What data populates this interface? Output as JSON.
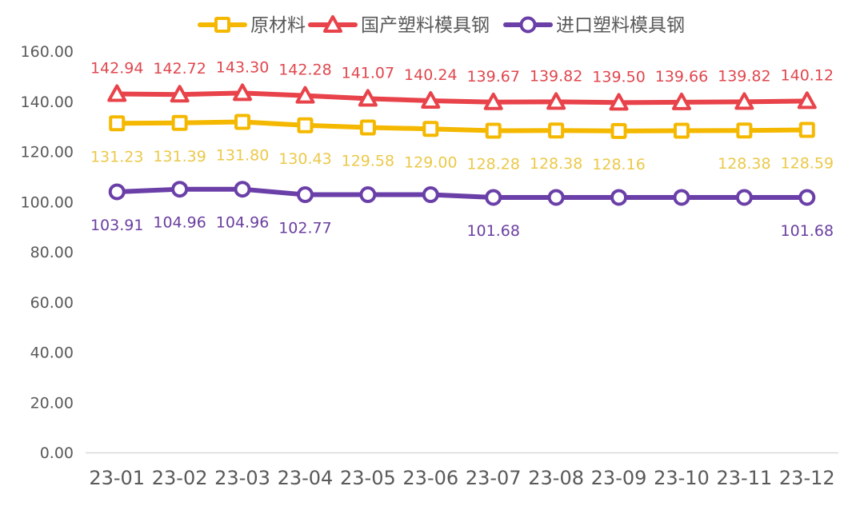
{
  "chart_data": {
    "type": "line",
    "title": "",
    "xlabel": "",
    "ylabel": "",
    "ylim": [
      0,
      160
    ],
    "y_ticks": [
      "0.00",
      "20.00",
      "40.00",
      "60.00",
      "80.00",
      "100.00",
      "120.00",
      "140.00",
      "160.00"
    ],
    "grid": false,
    "legend_position": "top-center",
    "categories": [
      "23-01",
      "23-02",
      "23-03",
      "23-04",
      "23-05",
      "23-06",
      "23-07",
      "23-08",
      "23-09",
      "23-10",
      "23-11",
      "23-12"
    ],
    "series": [
      {
        "name": "原材料",
        "color": "#F5B800",
        "label_color": "#EBC94A",
        "marker": "square",
        "label_position": "below",
        "values": [
          131.23,
          131.39,
          131.8,
          130.43,
          129.58,
          129.0,
          128.28,
          128.38,
          128.16,
          128.3,
          128.38,
          128.59
        ],
        "data_labels": [
          "131.23",
          "131.39",
          "131.80",
          "130.43",
          "129.58",
          "129.00",
          "128.28",
          "128.38",
          "128.16",
          "",
          "128.38",
          "128.59"
        ]
      },
      {
        "name": "国产塑料模具钢",
        "color": "#E8434A",
        "label_color": "#E0474E",
        "marker": "triangle",
        "label_position": "above",
        "values": [
          142.94,
          142.72,
          143.3,
          142.28,
          141.07,
          140.24,
          139.67,
          139.82,
          139.5,
          139.66,
          139.82,
          140.12
        ],
        "data_labels": [
          "142.94",
          "142.72",
          "143.30",
          "142.28",
          "141.07",
          "140.24",
          "139.67",
          "139.82",
          "139.50",
          "139.66",
          "139.82",
          "140.12"
        ]
      },
      {
        "name": "进口塑料模具钢",
        "color": "#6A3FA8",
        "label_color": "#6B3FA0",
        "marker": "circle",
        "label_position": "below",
        "values": [
          103.91,
          104.96,
          104.96,
          102.77,
          102.77,
          102.77,
          101.68,
          101.68,
          101.68,
          101.68,
          101.68,
          101.68
        ],
        "data_labels": [
          "103.91",
          "104.96",
          "104.96",
          "102.77",
          "",
          "",
          "101.68",
          "",
          "",
          "",
          "",
          "101.68"
        ]
      }
    ]
  }
}
